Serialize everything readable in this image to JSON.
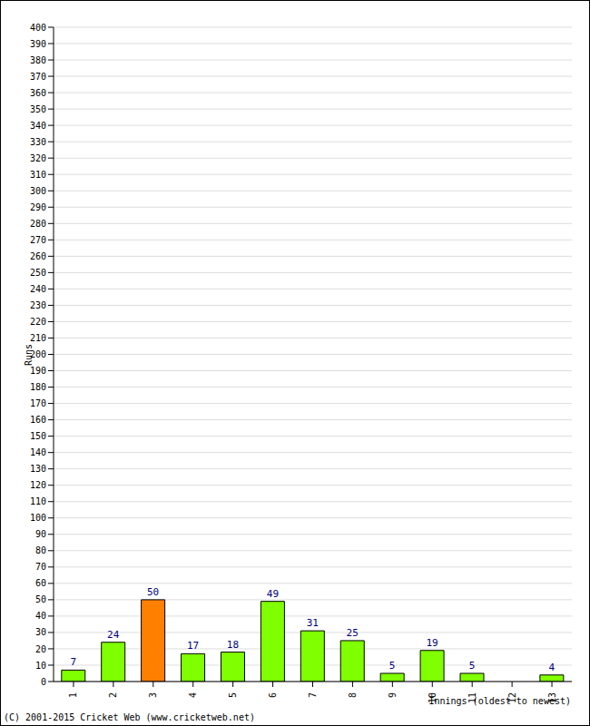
{
  "chart_data": {
    "type": "bar",
    "categories": [
      "1",
      "2",
      "3",
      "4",
      "5",
      "6",
      "7",
      "8",
      "9",
      "10",
      "11",
      "12",
      "13"
    ],
    "values": [
      7,
      24,
      50,
      17,
      18,
      49,
      31,
      25,
      5,
      19,
      5,
      0,
      4
    ],
    "colors": [
      "#80ff00",
      "#80ff00",
      "#ff8000",
      "#80ff00",
      "#80ff00",
      "#80ff00",
      "#80ff00",
      "#80ff00",
      "#80ff00",
      "#80ff00",
      "#80ff00",
      "#80ff00",
      "#80ff00"
    ],
    "ylim": [
      0,
      400
    ],
    "yticks": [
      0,
      10,
      20,
      30,
      40,
      50,
      60,
      70,
      80,
      90,
      100,
      110,
      120,
      130,
      140,
      150,
      160,
      170,
      180,
      190,
      200,
      210,
      220,
      230,
      240,
      250,
      260,
      270,
      280,
      290,
      300,
      310,
      320,
      330,
      340,
      350,
      360,
      370,
      380,
      390,
      400
    ],
    "grid": true,
    "data_labels": true,
    "y_label": "Runs",
    "x_label": "Innings (oldest to newest)",
    "annotation": "(C) 2001-2015 Cricket Web (www.cricketweb.net)"
  }
}
